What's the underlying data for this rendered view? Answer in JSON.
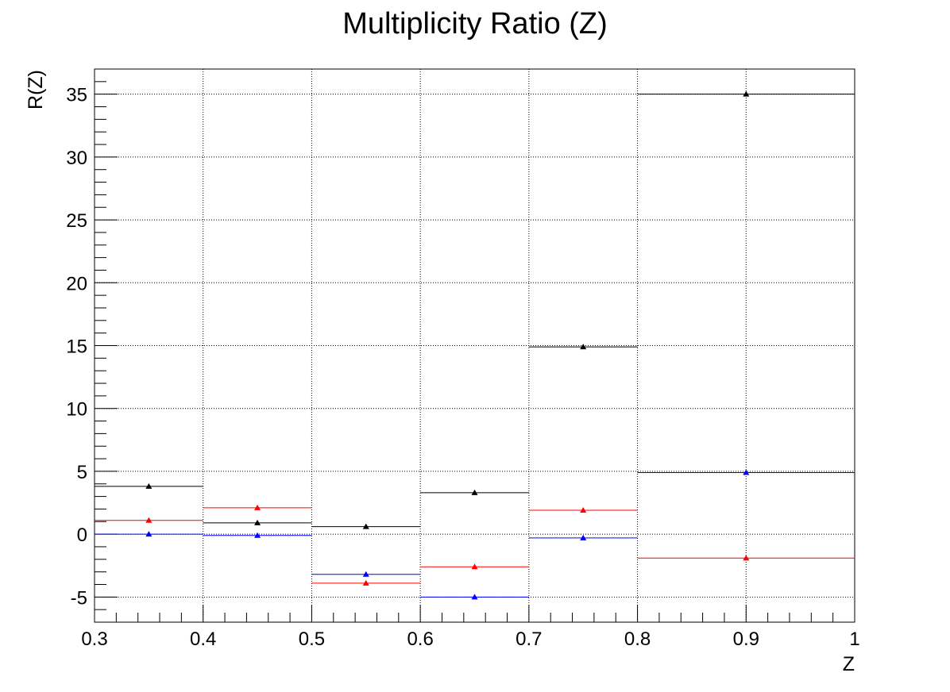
{
  "chart_data": {
    "type": "scatter",
    "title": "Multiplicity Ratio (Z)",
    "xlabel": "Z",
    "ylabel": "R(Z)",
    "xlim": [
      0.3,
      1.0
    ],
    "ylim": [
      -7,
      37
    ],
    "grid": true,
    "x_ticks": [
      "0.3",
      "0.4",
      "0.5",
      "0.6",
      "0.7",
      "0.8",
      "0.9",
      "1"
    ],
    "y_ticks": [
      "-5",
      "0",
      "5",
      "10",
      "15",
      "20",
      "25",
      "30",
      "35"
    ],
    "bins": [
      [
        0.3,
        0.4
      ],
      [
        0.4,
        0.5
      ],
      [
        0.5,
        0.6
      ],
      [
        0.6,
        0.7
      ],
      [
        0.7,
        0.8
      ],
      [
        0.8,
        1.0
      ]
    ],
    "x": [
      0.35,
      0.45,
      0.55,
      0.65,
      0.75,
      0.9
    ],
    "series": [
      {
        "color": "#000000",
        "values": [
          3.8,
          0.9,
          0.6,
          3.3,
          14.9,
          35.0
        ]
      },
      {
        "color": "#ff0000",
        "values": [
          1.1,
          2.1,
          -3.9,
          -2.6,
          1.9,
          -1.9
        ]
      },
      {
        "color": "#0000ff",
        "values": [
          0.0,
          -0.1,
          -3.2,
          -5.0,
          -0.3,
          4.9
        ]
      }
    ]
  }
}
